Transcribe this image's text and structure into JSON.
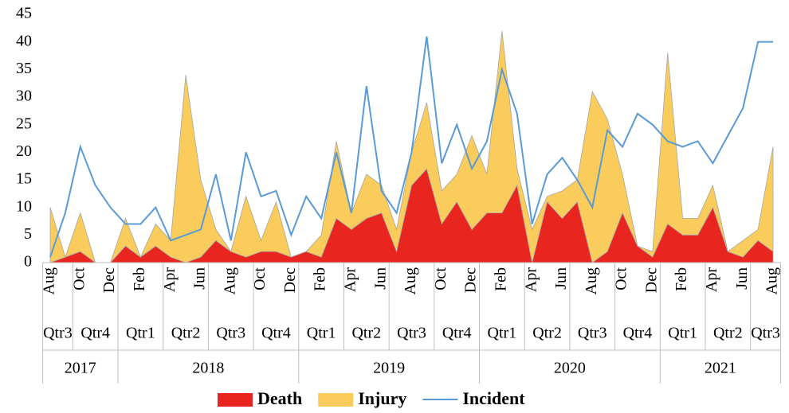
{
  "chart_data": {
    "type": "stacked-area-line",
    "categories": [
      "Aug",
      null,
      "Oct",
      null,
      "Dec",
      null,
      "Feb",
      null,
      "Apr",
      null,
      "Jun",
      null,
      "Aug",
      null,
      "Oct",
      null,
      "Dec",
      null,
      "Feb",
      null,
      "Apr",
      null,
      "Jun",
      null,
      "Aug",
      null,
      "Oct",
      null,
      "Dec",
      null,
      "Feb",
      null,
      "Apr",
      null,
      "Jun",
      null,
      "Aug",
      null,
      "Oct",
      null,
      "Dec",
      null,
      "Feb",
      null,
      "Apr",
      null,
      "Jun",
      null,
      "Aug"
    ],
    "quarters": [
      "Qtr3",
      "Qtr3",
      "Qtr4",
      "Qtr4",
      "Qtr4",
      "Qtr1",
      "Qtr1",
      "Qtr1",
      "Qtr2",
      "Qtr2",
      "Qtr2",
      "Qtr3",
      "Qtr3",
      "Qtr3",
      "Qtr4",
      "Qtr4",
      "Qtr4",
      "Qtr1",
      "Qtr1",
      "Qtr1",
      "Qtr2",
      "Qtr2",
      "Qtr2",
      "Qtr3",
      "Qtr3",
      "Qtr3",
      "Qtr4",
      "Qtr4",
      "Qtr4",
      "Qtr1",
      "Qtr1",
      "Qtr1",
      "Qtr2",
      "Qtr2",
      "Qtr2",
      "Qtr3",
      "Qtr3",
      "Qtr3",
      "Qtr4",
      "Qtr4",
      "Qtr4",
      "Qtr1",
      "Qtr1",
      "Qtr1",
      "Qtr2",
      "Qtr2",
      "Qtr2",
      "Qtr3",
      "Qtr3"
    ],
    "years": [
      "2017",
      "2017",
      "2017",
      "2017",
      "2017",
      "2018",
      "2018",
      "2018",
      "2018",
      "2018",
      "2018",
      "2018",
      "2018",
      "2018",
      "2018",
      "2018",
      "2018",
      "2019",
      "2019",
      "2019",
      "2019",
      "2019",
      "2019",
      "2019",
      "2019",
      "2019",
      "2019",
      "2019",
      "2019",
      "2020",
      "2020",
      "2020",
      "2020",
      "2020",
      "2020",
      "2020",
      "2020",
      "2020",
      "2020",
      "2020",
      "2020",
      "2021",
      "2021",
      "2021",
      "2021",
      "2021",
      "2021",
      "2021",
      "2021"
    ],
    "series": [
      {
        "name": "Death",
        "kind": "area",
        "color": "#e8251f",
        "values": [
          0,
          1,
          2,
          0,
          0,
          3,
          1,
          3,
          1,
          0,
          1,
          4,
          2,
          1,
          2,
          2,
          1,
          2,
          1,
          8,
          6,
          8,
          9,
          2,
          14,
          17,
          7,
          11,
          6,
          9,
          9,
          14,
          0,
          11,
          8,
          11,
          0,
          2,
          9,
          3,
          1,
          7,
          5,
          5,
          10,
          2,
          1,
          4,
          2
        ]
      },
      {
        "name": "Injury",
        "kind": "area",
        "color": "#f9cc5b",
        "values": [
          10,
          0,
          7,
          0,
          0,
          5,
          0,
          4,
          3,
          34,
          14,
          2,
          0,
          11,
          2,
          9,
          0,
          0,
          4,
          14,
          3,
          8,
          5,
          4,
          6,
          12,
          6,
          5,
          17,
          7,
          33,
          3,
          6,
          1,
          5,
          4,
          31,
          24,
          7,
          0,
          1,
          31,
          3,
          3,
          4,
          0,
          3,
          2,
          19
        ]
      },
      {
        "name": "Incident",
        "kind": "line",
        "color": "#5b9bd5",
        "values": [
          1,
          9,
          21,
          14,
          10,
          7,
          7,
          10,
          4,
          5,
          6,
          16,
          4,
          20,
          12,
          13,
          5,
          12,
          8,
          20,
          9,
          32,
          13,
          9,
          20,
          41,
          18,
          25,
          17,
          22,
          35,
          27,
          7,
          16,
          19,
          15,
          10,
          24,
          21,
          27,
          25,
          22,
          21,
          22,
          18,
          23,
          28,
          40,
          40
        ]
      }
    ],
    "ylim": [
      0,
      45
    ],
    "yticks": [
      0,
      5,
      10,
      15,
      20,
      25,
      30,
      35,
      40,
      45
    ],
    "grid": false
  }
}
